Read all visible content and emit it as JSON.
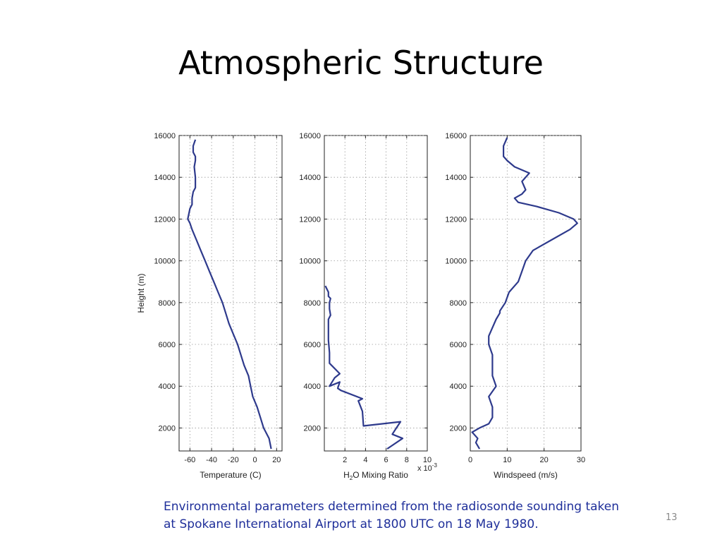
{
  "slide": {
    "title": "Atmospheric Structure",
    "caption_line1": "Environmental parameters determined from the radiosonde sounding taken",
    "caption_line2": "at Spokane International Airport at 1800 UTC on 18 May 1980.",
    "page_number": "13"
  },
  "colors": {
    "line": "#2e3a8c",
    "grid": "#9a9a9a",
    "caption": "#1f2f9a"
  },
  "chart_data": [
    {
      "type": "line",
      "xlabel": "Temperature (C)",
      "ylabel": "Height (m)",
      "xlim": [
        -70,
        25
      ],
      "ylim": [
        900,
        16000
      ],
      "xticks": [
        -60,
        -40,
        -20,
        0,
        20
      ],
      "xtick_labels": [
        "-60",
        "-40",
        "-20",
        "0",
        "20"
      ],
      "yticks": [
        2000,
        4000,
        6000,
        8000,
        10000,
        12000,
        14000,
        16000
      ],
      "ytick_labels": [
        "2000",
        "4000",
        "6000",
        "8000",
        "10000",
        "12000",
        "14000",
        "16000"
      ],
      "grid": true,
      "series": [
        {
          "x": [
            15,
            13,
            8,
            5,
            2,
            -2,
            -4,
            -6,
            -10,
            -13,
            -16,
            -20,
            -24,
            -27,
            -30,
            -34,
            -38,
            -42,
            -46,
            -50,
            -54,
            -58,
            -60,
            -62,
            -60,
            -58,
            -58,
            -57,
            -55,
            -55,
            -56,
            -55,
            -55,
            -57,
            -57,
            -55
          ],
          "y": [
            1000,
            1500,
            2000,
            2500,
            3000,
            3500,
            4000,
            4500,
            5000,
            5500,
            6000,
            6500,
            7000,
            7500,
            8000,
            8500,
            9000,
            9500,
            10000,
            10500,
            11000,
            11500,
            11800,
            12000,
            12500,
            12700,
            13000,
            13300,
            13500,
            14000,
            14500,
            14800,
            15000,
            15200,
            15500,
            15800
          ]
        }
      ]
    },
    {
      "type": "line",
      "xlabel": "H2O Mixing Ratio",
      "x_exponent": "x 10^-3",
      "ylabel": "",
      "xlim": [
        0,
        10
      ],
      "ylim": [
        900,
        16000
      ],
      "xticks": [
        2,
        4,
        6,
        8,
        10
      ],
      "xtick_labels": [
        "2",
        "4",
        "6",
        "8",
        "10"
      ],
      "yticks": [
        2000,
        4000,
        6000,
        8000,
        10000,
        12000,
        14000,
        16000
      ],
      "ytick_labels": [
        "2000",
        "4000",
        "6000",
        "8000",
        "10000",
        "12000",
        "14000",
        "16000"
      ],
      "grid": true,
      "series": [
        {
          "x": [
            6.1,
            7.6,
            6.6,
            7.0,
            7.4,
            3.8,
            3.7,
            3.3,
            3.7,
            1.6,
            1.3,
            1.5,
            0.5,
            1.0,
            1.5,
            0.5,
            0.5,
            0.4,
            0.4,
            0.4,
            0.6,
            0.5,
            0.5,
            0.5,
            0.6,
            0.4,
            0.4,
            0.2,
            0.1
          ],
          "y": [
            1000,
            1500,
            1700,
            2000,
            2300,
            2100,
            2800,
            3300,
            3400,
            3800,
            3900,
            4200,
            4000,
            4400,
            4600,
            5100,
            5600,
            6200,
            6800,
            7200,
            7400,
            7700,
            7900,
            8000,
            8200,
            8300,
            8500,
            8700,
            8800
          ]
        }
      ]
    },
    {
      "type": "line",
      "xlabel": "Windspeed (m/s)",
      "ylabel": "",
      "xlim": [
        0,
        30
      ],
      "ylim": [
        900,
        16000
      ],
      "xticks": [
        0,
        10,
        20,
        30
      ],
      "xtick_labels": [
        "0",
        "10",
        "20",
        "30"
      ],
      "yticks": [
        2000,
        4000,
        6000,
        8000,
        10000,
        12000,
        14000,
        16000
      ],
      "ytick_labels": [
        "2000",
        "4000",
        "6000",
        "8000",
        "10000",
        "12000",
        "14000",
        "16000"
      ],
      "grid": true,
      "series": [
        {
          "x": [
            2.5,
            1.5,
            2.0,
            0.5,
            2.5,
            5.0,
            6.0,
            6.0,
            5.0,
            7.0,
            6.0,
            6.0,
            6.0,
            5.0,
            5.0,
            6.0,
            7.0,
            8.0,
            8.0,
            9.5,
            10.5,
            13.0,
            14.0,
            15.0,
            17.0,
            22.0,
            27.0,
            29.0,
            28.0,
            24.0,
            18.0,
            13.0,
            12.0,
            14.0,
            15.0,
            14.0,
            16.0,
            12.0,
            10.0,
            9.0,
            9.0,
            10.0
          ],
          "y": [
            1000,
            1300,
            1500,
            1800,
            2000,
            2200,
            2500,
            3000,
            3500,
            4000,
            4500,
            5000,
            5500,
            6000,
            6400,
            6800,
            7200,
            7500,
            7600,
            8000,
            8500,
            9000,
            9500,
            10000,
            10500,
            11000,
            11500,
            11800,
            12000,
            12300,
            12600,
            12800,
            13000,
            13200,
            13400,
            13800,
            14200,
            14500,
            14800,
            15000,
            15500,
            15900
          ]
        }
      ]
    }
  ]
}
